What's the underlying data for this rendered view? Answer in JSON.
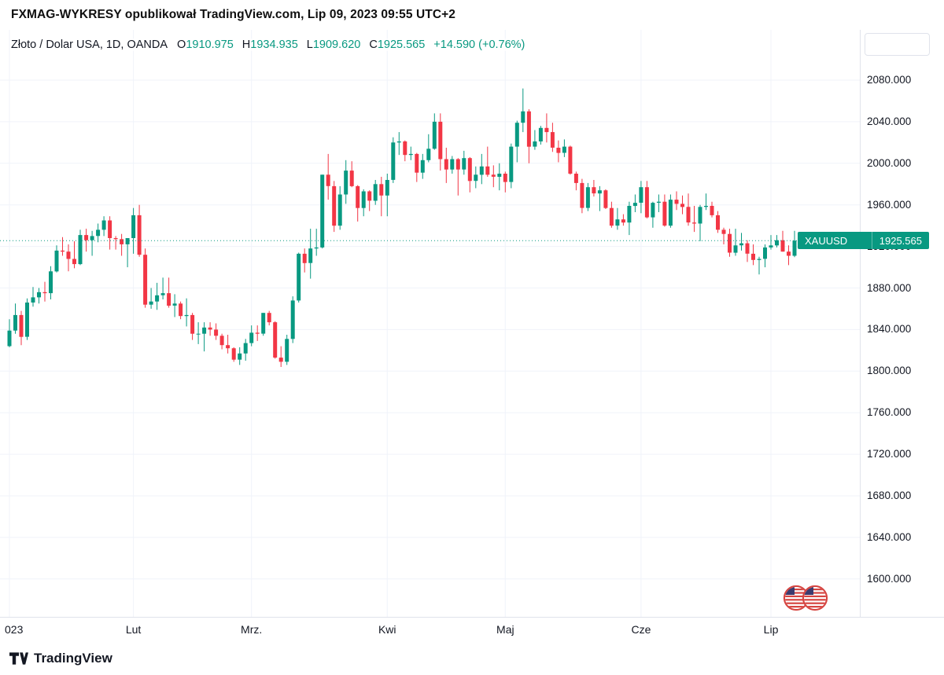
{
  "attribution": {
    "text": "FXMAG-WYKRESY opublikował TradingView.com, Lip 09, 2023 09:55 UTC+2"
  },
  "header": {
    "symbol_title": "Złoto / Dolar USA, 1D, OANDA",
    "ohlc": {
      "open_label": "O",
      "open": "1910.975",
      "high_label": "H",
      "high": "1934.935",
      "low_label": "L",
      "low": "1909.620",
      "close_label": "C",
      "close": "1925.565",
      "change": "+14.590 (+0.76%)"
    }
  },
  "price_badge": {
    "symbol": "XAUUSD",
    "price": "1925.565"
  },
  "footer": {
    "brand": "TradingView"
  },
  "colors": {
    "up": "#089981",
    "down": "#F23645",
    "grid": "#F0F3FA",
    "axis_text": "#131722",
    "border": "#E0E3EB",
    "badge_bg": "#089981",
    "flag_red": "#D64541",
    "flag_blue": "#3C3B6E"
  },
  "chart_data": {
    "type": "candlestick",
    "title": "Złoto / Dolar USA, 1D, OANDA",
    "symbol": "XAUUSD",
    "timeframe": "1D",
    "exchange": "OANDA",
    "current_price": 1925.565,
    "price_ticks": [
      2080,
      2040,
      2000,
      1960,
      1920,
      1880,
      1840,
      1800,
      1760,
      1720,
      1680,
      1640,
      1600
    ],
    "month_ticks": [
      {
        "label": "023",
        "index": 0
      },
      {
        "label": "Lut",
        "index": 21
      },
      {
        "label": "Mrz.",
        "index": 41
      },
      {
        "label": "Kwi",
        "index": 64
      },
      {
        "label": "Maj",
        "index": 84
      },
      {
        "label": "Cze",
        "index": 107
      },
      {
        "label": "Lip",
        "index": 129
      }
    ],
    "candles_ohlc": [
      [
        1824,
        1850,
        1823,
        1839
      ],
      [
        1839,
        1865,
        1836,
        1854
      ],
      [
        1854,
        1858,
        1825,
        1833
      ],
      [
        1833,
        1870,
        1830,
        1866
      ],
      [
        1866,
        1881,
        1862,
        1871
      ],
      [
        1871,
        1880,
        1865,
        1876
      ],
      [
        1876,
        1886,
        1867,
        1875
      ],
      [
        1875,
        1901,
        1869,
        1896
      ],
      [
        1896,
        1921,
        1895,
        1916
      ],
      [
        1916,
        1929,
        1911,
        1915
      ],
      [
        1915,
        1922,
        1896,
        1908
      ],
      [
        1908,
        1925,
        1899,
        1903
      ],
      [
        1903,
        1936,
        1902,
        1931
      ],
      [
        1931,
        1937,
        1915,
        1926
      ],
      [
        1926,
        1935,
        1911,
        1930
      ],
      [
        1930,
        1942,
        1924,
        1936
      ],
      [
        1936,
        1949,
        1930,
        1945
      ],
      [
        1945,
        1949,
        1917,
        1928
      ],
      [
        1928,
        1930,
        1917,
        1927
      ],
      [
        1927,
        1932,
        1911,
        1922
      ],
      [
        1922,
        1928,
        1900,
        1928
      ],
      [
        1928,
        1957,
        1913,
        1950
      ],
      [
        1950,
        1960,
        1910,
        1912
      ],
      [
        1912,
        1918,
        1861,
        1864
      ],
      [
        1864,
        1880,
        1860,
        1867
      ],
      [
        1867,
        1885,
        1859,
        1873
      ],
      [
        1873,
        1890,
        1869,
        1875
      ],
      [
        1875,
        1890,
        1861,
        1863
      ],
      [
        1863,
        1874,
        1852,
        1865
      ],
      [
        1865,
        1867,
        1850,
        1853
      ],
      [
        1853,
        1870,
        1843,
        1854
      ],
      [
        1854,
        1856,
        1830,
        1836
      ],
      [
        1836,
        1847,
        1826,
        1836
      ],
      [
        1836,
        1847,
        1819,
        1842
      ],
      [
        1842,
        1847,
        1834,
        1840
      ],
      [
        1840,
        1846,
        1830,
        1834
      ],
      [
        1834,
        1836,
        1821,
        1825
      ],
      [
        1825,
        1835,
        1817,
        1822
      ],
      [
        1822,
        1823,
        1809,
        1811
      ],
      [
        1811,
        1823,
        1806,
        1817
      ],
      [
        1817,
        1831,
        1810,
        1827
      ],
      [
        1827,
        1844,
        1824,
        1837
      ],
      [
        1837,
        1844,
        1829,
        1836
      ],
      [
        1836,
        1856,
        1834,
        1856
      ],
      [
        1856,
        1858,
        1844,
        1847
      ],
      [
        1847,
        1848,
        1812,
        1813
      ],
      [
        1813,
        1824,
        1804,
        1809
      ],
      [
        1809,
        1835,
        1806,
        1831
      ],
      [
        1831,
        1872,
        1827,
        1868
      ],
      [
        1868,
        1914,
        1866,
        1913
      ],
      [
        1913,
        1918,
        1895,
        1904
      ],
      [
        1904,
        1937,
        1889,
        1918
      ],
      [
        1918,
        1937,
        1911,
        1919
      ],
      [
        1919,
        1989,
        1918,
        1989
      ],
      [
        1989,
        2009,
        1965,
        1978
      ],
      [
        1978,
        1983,
        1934,
        1940
      ],
      [
        1940,
        1978,
        1936,
        1970
      ],
      [
        1970,
        2003,
        1961,
        1993
      ],
      [
        1993,
        2002,
        1977,
        1978
      ],
      [
        1978,
        1979,
        1944,
        1957
      ],
      [
        1957,
        1975,
        1949,
        1973
      ],
      [
        1973,
        1974,
        1954,
        1964
      ],
      [
        1964,
        1984,
        1960,
        1980
      ],
      [
        1980,
        1987,
        1949,
        1969
      ],
      [
        1969,
        1990,
        1949,
        1984
      ],
      [
        1984,
        2025,
        1981,
        2020
      ],
      [
        2020,
        2030,
        2008,
        2021
      ],
      [
        2021,
        2022,
        2002,
        2008
      ],
      [
        2008,
        2016,
        2003,
        2009
      ],
      [
        2009,
        2010,
        1982,
        1991
      ],
      [
        1991,
        2009,
        1985,
        2003
      ],
      [
        2003,
        2028,
        2001,
        2014
      ],
      [
        2014,
        2048,
        2013,
        2040
      ],
      [
        2040,
        2048,
        1993,
        2004
      ],
      [
        2004,
        2015,
        1981,
        1994
      ],
      [
        1994,
        2007,
        1990,
        2004
      ],
      [
        2004,
        2005,
        1969,
        1994
      ],
      [
        1994,
        2012,
        1989,
        2005
      ],
      [
        2005,
        2006,
        1972,
        1983
      ],
      [
        1983,
        1997,
        1976,
        1989
      ],
      [
        1989,
        2009,
        1980,
        1997
      ],
      [
        1997,
        2016,
        1987,
        1989
      ],
      [
        1989,
        1998,
        1977,
        1987
      ],
      [
        1987,
        2000,
        1974,
        1990
      ],
      [
        1990,
        1992,
        1972,
        1982
      ],
      [
        1982,
        2019,
        1976,
        2016
      ],
      [
        2016,
        2041,
        2001,
        2039
      ],
      [
        2039,
        2072,
        2030,
        2050
      ],
      [
        2050,
        2052,
        2000,
        2016
      ],
      [
        2016,
        2032,
        2013,
        2021
      ],
      [
        2021,
        2036,
        2018,
        2034
      ],
      [
        2034,
        2048,
        2020,
        2030
      ],
      [
        2030,
        2039,
        2011,
        2015
      ],
      [
        2015,
        2022,
        2001,
        2010
      ],
      [
        2010,
        2023,
        2006,
        2016
      ],
      [
        2016,
        2017,
        1989,
        1990
      ],
      [
        1990,
        1992,
        1974,
        1981
      ],
      [
        1981,
        1985,
        1952,
        1957
      ],
      [
        1957,
        1981,
        1954,
        1977
      ],
      [
        1977,
        1984,
        1968,
        1971
      ],
      [
        1971,
        1978,
        1954,
        1974
      ],
      [
        1974,
        1975,
        1956,
        1957
      ],
      [
        1957,
        1963,
        1938,
        1940
      ],
      [
        1940,
        1957,
        1936,
        1946
      ],
      [
        1946,
        1951,
        1940,
        1943
      ],
      [
        1943,
        1963,
        1931,
        1959
      ],
      [
        1959,
        1970,
        1953,
        1962
      ],
      [
        1962,
        1983,
        1952,
        1977
      ],
      [
        1977,
        1983,
        1947,
        1948
      ],
      [
        1948,
        1963,
        1938,
        1962
      ],
      [
        1962,
        1970,
        1953,
        1963
      ],
      [
        1963,
        1970,
        1939,
        1940
      ],
      [
        1940,
        1970,
        1938,
        1965
      ],
      [
        1965,
        1973,
        1955,
        1961
      ],
      [
        1961,
        1969,
        1951,
        1958
      ],
      [
        1958,
        1971,
        1940,
        1943
      ],
      [
        1943,
        1959,
        1934,
        1942
      ],
      [
        1942,
        1960,
        1925,
        1958
      ],
      [
        1958,
        1971,
        1955,
        1959
      ],
      [
        1959,
        1963,
        1948,
        1950
      ],
      [
        1950,
        1954,
        1933,
        1936
      ],
      [
        1936,
        1938,
        1922,
        1932
      ],
      [
        1932,
        1937,
        1910,
        1914
      ],
      [
        1914,
        1937,
        1911,
        1921
      ],
      [
        1921,
        1933,
        1916,
        1923
      ],
      [
        1923,
        1926,
        1905,
        1913
      ],
      [
        1913,
        1922,
        1902,
        1907
      ],
      [
        1907,
        1910,
        1893,
        1908
      ],
      [
        1908,
        1922,
        1900,
        1919
      ],
      [
        1919,
        1931,
        1917,
        1921
      ],
      [
        1921,
        1931,
        1919,
        1926
      ],
      [
        1926,
        1935,
        1915,
        1915
      ],
      [
        1915,
        1921,
        1902,
        1911
      ],
      [
        1910.975,
        1934.935,
        1909.62,
        1925.565
      ]
    ]
  }
}
